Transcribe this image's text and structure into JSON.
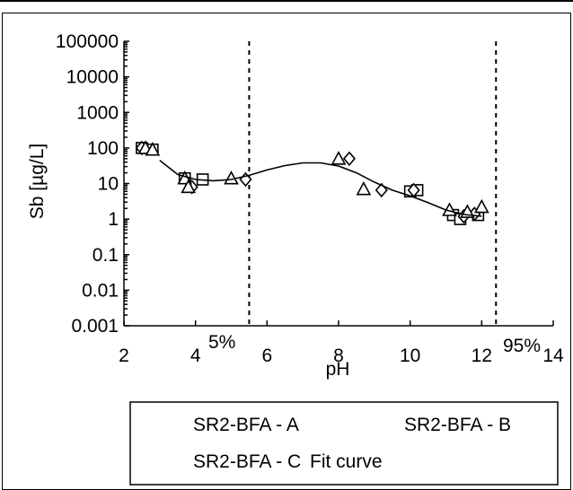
{
  "chart_data": {
    "type": "scatter",
    "xlabel": "pH",
    "ylabel": "Sb [µg/L]",
    "xlim": [
      2,
      14
    ],
    "ylim": [
      0.001,
      100000
    ],
    "y_scale": "log",
    "x_ticks": [
      "2",
      "4",
      "6",
      "8",
      "10",
      "12",
      "14"
    ],
    "y_ticks": [
      "0.001",
      "0.01",
      "0.1",
      "1",
      "10",
      "100",
      "1000",
      "10000",
      "100000"
    ],
    "grid": false,
    "legend_position": "bottom",
    "series": [
      {
        "name": "SR2-BFA - A",
        "marker": "square",
        "x": [
          2.5,
          2.8,
          3.7,
          4.2,
          10.0,
          10.2,
          11.2,
          11.4,
          11.9
        ],
        "y": [
          100,
          90,
          14,
          13,
          6,
          6.5,
          1.3,
          1.0,
          1.3
        ]
      },
      {
        "name": "SR2-BFA - B",
        "marker": "diamond",
        "x": [
          2.5,
          3.9,
          5.4,
          8.3,
          9.2,
          10.1,
          11.5,
          11.8
        ],
        "y": [
          100,
          8,
          13,
          50,
          6.5,
          6.5,
          1.2,
          1.4
        ]
      },
      {
        "name": "SR2-BFA - C",
        "marker": "triangle",
        "x": [
          2.6,
          2.8,
          3.7,
          3.8,
          5.0,
          8.0,
          8.7,
          11.1,
          11.6,
          12.0
        ],
        "y": [
          100,
          90,
          14,
          8,
          14,
          50,
          7,
          1.8,
          1.6,
          2.2
        ]
      },
      {
        "name": "Fit curve",
        "marker": "line",
        "x": [
          3.0,
          3.5,
          4.0,
          4.5,
          5.0,
          5.5,
          6.0,
          6.5,
          7.0,
          7.5,
          8.0,
          8.5,
          9.0,
          9.5,
          10.0,
          10.5,
          11.0,
          11.5,
          12.0
        ],
        "y": [
          45,
          18,
          13,
          12,
          13,
          17,
          24,
          32,
          38,
          38,
          31,
          20,
          11,
          6.5,
          4.5,
          2.9,
          1.8,
          1.35,
          1.2
        ]
      }
    ],
    "vlines": [
      {
        "x": 5.5,
        "label": "5%"
      },
      {
        "x": 12.4,
        "label": "95%"
      }
    ]
  }
}
